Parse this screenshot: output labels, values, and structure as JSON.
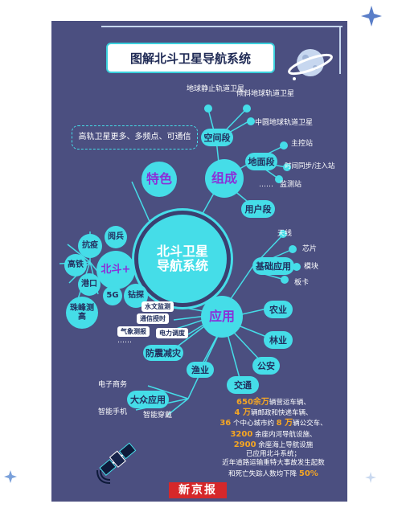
{
  "title": "图解北斗卫星导航系统",
  "center": {
    "line1": "北斗卫星",
    "line2": "导航系统"
  },
  "features": {
    "label": "特色",
    "text": "高轨卫星更多、多频点、可通信"
  },
  "composition": {
    "label": "组成",
    "space_segment": {
      "label": "空间段",
      "items": [
        "地球静止轨道卫星",
        "倾斜地球轨道卫星",
        "中圆地球轨道卫星"
      ]
    },
    "ground_segment": {
      "label": "地面段",
      "items": [
        "主控站",
        "时间同步/注入站",
        "监测站"
      ],
      "more": "……"
    },
    "user_segment": {
      "label": "用户段"
    }
  },
  "beidou_plus": {
    "label": "北斗+",
    "items": [
      "阅兵",
      "抗疫",
      "高铁",
      "港口",
      "5G",
      "钻探",
      "珠峰测高"
    ]
  },
  "applications": {
    "label": "应用",
    "basic": {
      "label": "基础应用",
      "items": [
        "天线",
        "芯片",
        "模块",
        "板卡"
      ]
    },
    "industry_tags": [
      "水文监测",
      "通信授时",
      "气象测报",
      "电力调度"
    ],
    "industry_more": "……",
    "disaster": "防震减灾",
    "fishery": "渔业",
    "agriculture": "农业",
    "forestry": "林业",
    "police": "公安",
    "transport": "交通",
    "mass": {
      "label": "大众应用",
      "items": [
        "电子商务",
        "智能手机",
        "智能穿戴"
      ]
    }
  },
  "stats": {
    "line1_num": "650余万",
    "line1_text": "辆营运车辆、",
    "line2_num": "4 万",
    "line2_text": "辆邮政和快递车辆、",
    "line3_a": "36",
    "line3_b": " 个中心城市约 ",
    "line3_num": "8 万",
    "line3_c": "辆公交车、",
    "line4_num": "3200",
    "line4_text": " 余座内河导航设施、",
    "line5_num": "2900",
    "line5_text": " 余座海上导航设施",
    "line6": "已应用北斗系统；",
    "line7": "近年道路运输重特大事故发生起数",
    "line8_text": "和死亡失踪人数均下降 ",
    "line8_num": "50%"
  },
  "source": "新京报",
  "colors": {
    "background": "#4b4f80",
    "accent": "#45dde8",
    "highlight": "#f5a623",
    "source_red": "#d6282a"
  },
  "icons": [
    "planet-icon",
    "satellite-icon",
    "star-icon"
  ]
}
